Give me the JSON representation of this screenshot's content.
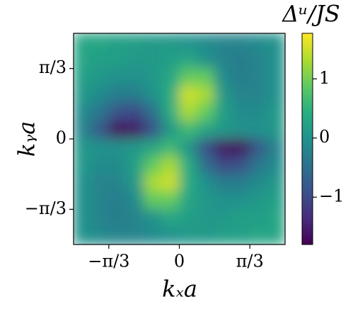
{
  "chart_data": {
    "type": "heatmap",
    "x_label": "kₓa",
    "y_label": "kᵧa",
    "colorbar_label": "Δᵘ/JS",
    "xlim": [
      -1.5708,
      1.5708
    ],
    "ylim": [
      -1.5708,
      1.5708
    ],
    "xticks": [
      {
        "value": -1.0472,
        "label": "−π/3"
      },
      0,
      {
        "value": 1.0472,
        "label": "π/3"
      }
    ],
    "yticks": [
      {
        "value": -1.0472,
        "label": "−π/3"
      },
      0,
      {
        "value": 1.0472,
        "label": "π/3"
      }
    ],
    "colormap": "viridis",
    "clim": [
      -1.8,
      1.77
    ],
    "cticks": [
      {
        "value": -1,
        "label": "−1"
      },
      0,
      1
    ],
    "z": [
      [
        0.3,
        0.3,
        0.2,
        0.2,
        0.1,
        0.1,
        0.0,
        -0.1,
        -0.2,
        -0.2,
        -0.1,
        0.0
      ],
      [
        0.3,
        0.2,
        0.2,
        0.1,
        0.1,
        0.2,
        0.3,
        0.0,
        -0.2,
        -0.3,
        -0.2,
        0.0
      ],
      [
        0.2,
        0.1,
        0.0,
        0.0,
        0.1,
        0.3,
        0.9,
        0.9,
        -0.1,
        -0.3,
        -0.2,
        0.0
      ],
      [
        0.1,
        -0.1,
        -0.3,
        -0.3,
        0.0,
        0.4,
        1.5,
        1.3,
        0.1,
        -0.2,
        -0.2,
        0.0
      ],
      [
        -0.1,
        -0.4,
        -0.9,
        -1.0,
        -0.5,
        0.4,
        1.3,
        0.9,
        0.2,
        -0.1,
        -0.1,
        0.1
      ],
      [
        -0.2,
        -0.8,
        -1.7,
        -1.6,
        -0.9,
        0.1,
        0.6,
        0.3,
        0.1,
        0.0,
        0.0,
        0.1
      ],
      [
        0.1,
        0.0,
        0.0,
        0.1,
        0.3,
        0.6,
        0.1,
        -0.9,
        -1.6,
        -1.7,
        -0.8,
        -0.2
      ],
      [
        0.1,
        -0.1,
        -0.1,
        0.2,
        0.9,
        1.3,
        0.4,
        -0.5,
        -1.0,
        -0.9,
        -0.4,
        -0.1
      ],
      [
        0.0,
        -0.2,
        -0.2,
        0.1,
        1.3,
        1.5,
        0.4,
        0.0,
        -0.3,
        -0.3,
        -0.1,
        0.1
      ],
      [
        0.0,
        -0.2,
        -0.3,
        -0.1,
        0.9,
        0.9,
        0.3,
        0.1,
        0.0,
        0.0,
        0.1,
        0.2
      ],
      [
        0.0,
        -0.2,
        -0.3,
        -0.2,
        0.0,
        0.3,
        0.2,
        0.1,
        0.1,
        0.2,
        0.2,
        0.3
      ],
      [
        0.0,
        -0.1,
        -0.2,
        -0.2,
        -0.1,
        0.0,
        0.1,
        0.1,
        0.2,
        0.2,
        0.3,
        0.3
      ]
    ]
  }
}
